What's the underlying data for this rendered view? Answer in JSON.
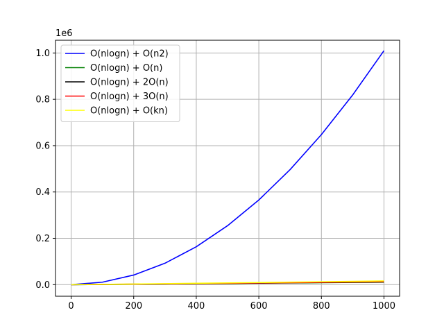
{
  "chart_data": {
    "type": "line",
    "title": "",
    "xlabel": "",
    "ylabel": "",
    "y_offset_text": "1e6",
    "xlim": [
      -50,
      1050
    ],
    "ylim": [
      -0.05,
      1.055
    ],
    "y_scale_factor": 1000000,
    "grid": true,
    "legend_position": "top-left",
    "x_ticks": [
      {
        "value": 0,
        "label": "0"
      },
      {
        "value": 200,
        "label": "200"
      },
      {
        "value": 400,
        "label": "400"
      },
      {
        "value": 600,
        "label": "600"
      },
      {
        "value": 800,
        "label": "800"
      },
      {
        "value": 1000,
        "label": "1000"
      }
    ],
    "y_ticks": [
      {
        "value": 0.0,
        "label": "0.0"
      },
      {
        "value": 0.2,
        "label": "0.2"
      },
      {
        "value": 0.4,
        "label": "0.4"
      },
      {
        "value": 0.6,
        "label": "0.6"
      },
      {
        "value": 0.8,
        "label": "0.8"
      },
      {
        "value": 1.0,
        "label": "1.0"
      }
    ],
    "x": [
      1,
      100,
      200,
      300,
      400,
      500,
      600,
      700,
      800,
      900,
      1000
    ],
    "series": [
      {
        "name": "O(nlogn) + O(n2)",
        "color": "#0000ff",
        "values": [
          1,
          10664,
          41528,
          92469,
          163458,
          254483,
          365538,
          496617,
          647715,
          818831,
          1009966
        ]
      },
      {
        "name": "O(nlogn) + O(n)",
        "color": "#008000",
        "values": [
          1,
          764,
          1728,
          2769,
          3858,
          4983,
          6138,
          7317,
          8515,
          9731,
          10966
        ]
      },
      {
        "name": "O(nlogn) + 2O(n)",
        "color": "#000000",
        "values": [
          2,
          864,
          1928,
          3069,
          4258,
          5483,
          6738,
          8017,
          9315,
          10631,
          11966
        ]
      },
      {
        "name": "O(nlogn) + 3O(n)",
        "color": "#ff0000",
        "values": [
          3,
          964,
          2128,
          3369,
          4658,
          5983,
          7338,
          8717,
          10115,
          11531,
          12966
        ]
      },
      {
        "name": "O(nlogn) + O(kn)",
        "color": "#ffff00",
        "values": [
          6,
          1264,
          2728,
          4269,
          5858,
          7483,
          9138,
          10817,
          12515,
          14231,
          15966
        ]
      }
    ]
  }
}
